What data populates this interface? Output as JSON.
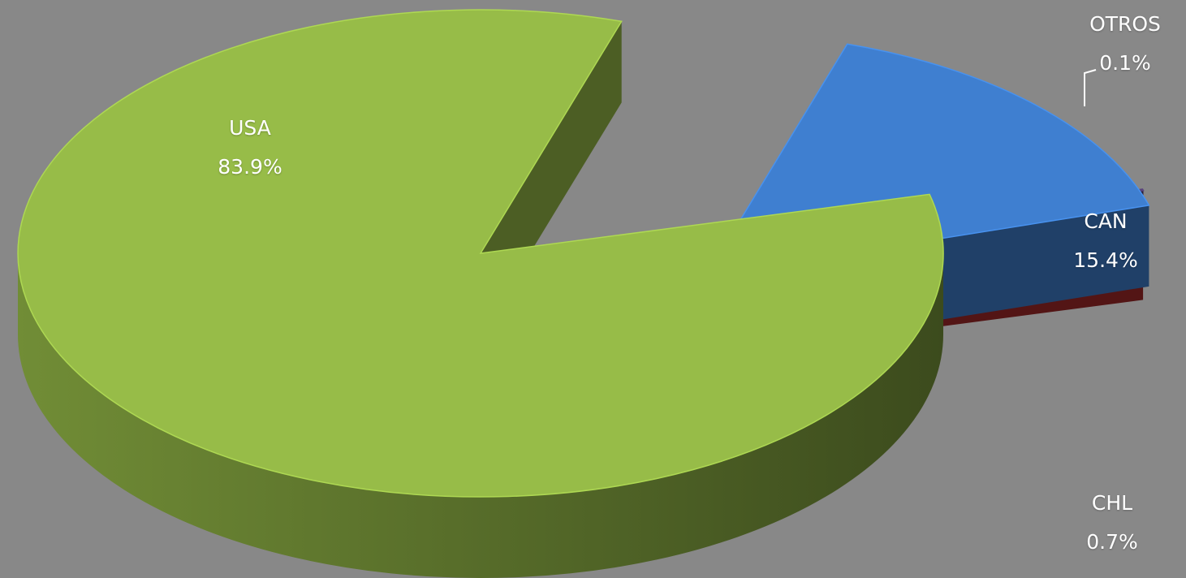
{
  "chart_data": {
    "type": "pie",
    "style": "3d-exploded",
    "slices": [
      {
        "label": "USA",
        "value": 83.9,
        "value_label": "83.9%",
        "color": "#97bc48"
      },
      {
        "label": "CAN",
        "value": 15.4,
        "value_label": "15.4%",
        "color": "#3f7fd0"
      },
      {
        "label": "OTROS",
        "value": 0.1,
        "value_label": "0.1%",
        "color": "#4e3a6e"
      },
      {
        "label": "CHL",
        "value": 0.7,
        "value_label": "0.7%",
        "color": "#a62a2a"
      }
    ]
  }
}
